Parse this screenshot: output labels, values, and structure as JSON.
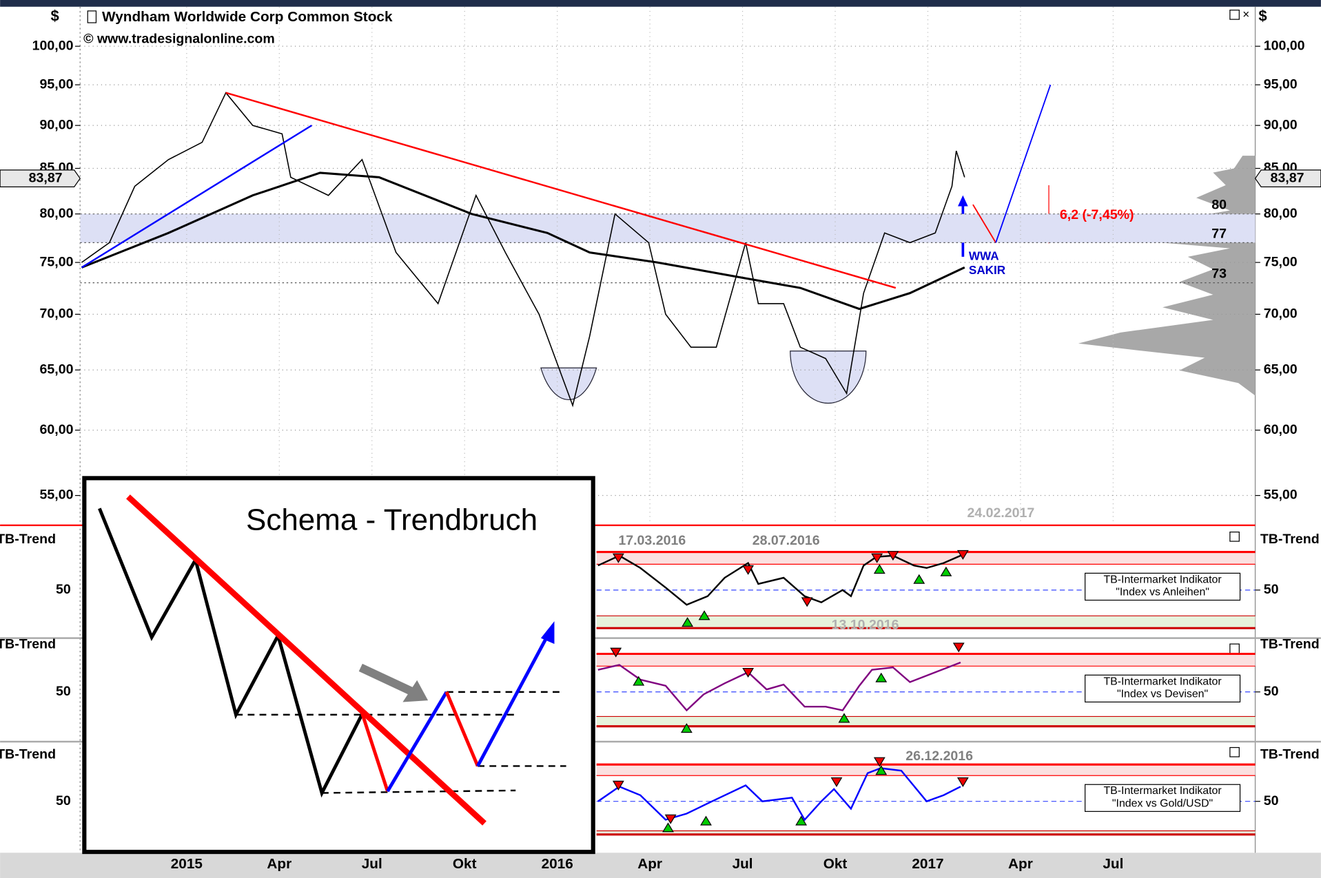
{
  "chart_data": [
    {
      "type": "line",
      "title": "Wyndham Worldwide Corp Common  Stock",
      "subtitle": "© www.tradesignalonline.com",
      "currency": "$",
      "log": true,
      "ylim": [
        53.1,
        105.4
      ],
      "yticks": [
        {
          "value": 55,
          "label": "55,00"
        },
        {
          "value": 60,
          "label": "60,00"
        },
        {
          "value": 65,
          "label": "65,00"
        },
        {
          "value": 70,
          "label": "70,00"
        },
        {
          "value": 75,
          "label": "75,00"
        },
        {
          "value": 80,
          "label": "80,00"
        },
        {
          "value": 85,
          "label": "85,00"
        },
        {
          "value": 90,
          "label": "90,00"
        },
        {
          "value": 95,
          "label": "95,00"
        },
        {
          "value": 100,
          "label": "100,00"
        }
      ],
      "xlim": [
        -3.45,
        34.6
      ],
      "xticks": [
        {
          "value": 0,
          "label": "2015"
        },
        {
          "value": 3,
          "label": "Apr"
        },
        {
          "value": 6,
          "label": "Jul"
        },
        {
          "value": 9,
          "label": "Okt"
        },
        {
          "value": 12,
          "label": "2016"
        },
        {
          "value": 15,
          "label": "Apr"
        },
        {
          "value": 18,
          "label": "Jul"
        },
        {
          "value": 21,
          "label": "Okt"
        },
        {
          "value": 24,
          "label": "2017"
        },
        {
          "value": 27,
          "label": "Apr"
        },
        {
          "value": 30,
          "label": "Jul"
        }
      ],
      "last_price": {
        "value": 83.87,
        "label": "83,87"
      },
      "levels": [
        80,
        77,
        73
      ],
      "series": [
        {
          "color": "#000000",
          "x": [
            -3.4,
            -2.5,
            -1.68,
            -0.59,
            0.5,
            1.27,
            2.14,
            3.09,
            3.37,
            4.59,
            5.68,
            6.78,
            8.14,
            9.37,
            10.32,
            11.41,
            12.5,
            13.05,
            13.87,
            14.96,
            15.51,
            16.33,
            17.15,
            18.1,
            18.51,
            19.33,
            19.87,
            20.69,
            21.37,
            21.92,
            22.6,
            23.42,
            24.24,
            24.78,
            24.92,
            25.19
          ],
          "values": [
            75,
            77,
            83,
            86,
            88,
            94,
            90,
            89,
            84,
            82,
            86,
            76,
            71,
            82,
            76,
            70,
            62,
            68,
            80,
            77,
            70,
            67,
            67,
            77,
            71,
            71,
            67,
            66,
            63,
            72,
            78,
            77,
            78,
            83,
            87,
            84
          ]
        },
        {
          "color": "#000000",
          "x": [
            -3.4,
            -0.59,
            2.14,
            4.32,
            6.23,
            9.23,
            11.68,
            13.05,
            15.24,
            17.97,
            19.87,
            21.78,
            23.42,
            25.19
          ],
          "values": [
            74.5,
            78,
            82,
            84.5,
            84,
            80,
            78,
            76,
            75,
            73.5,
            72.5,
            70.5,
            72,
            74.5
          ]
        },
        {
          "color": "#ff0000",
          "x": [
            1.27,
            22.96
          ],
          "values": [
            94,
            72.5
          ]
        },
        {
          "color": "#0000ff",
          "x": [
            -3.4,
            4.05
          ],
          "values": [
            74.5,
            90
          ]
        },
        {
          "color": "#ff0000",
          "x": [
            25.46,
            26.2
          ],
          "values": [
            81,
            77
          ]
        },
        {
          "color": "#0000ff",
          "x": [
            26.2,
            27.97
          ],
          "values": [
            77,
            95
          ]
        }
      ],
      "annotations": [
        {
          "text": "6,2 (-7,45%)"
        },
        {
          "text": "WWA"
        },
        {
          "text": "SAKIR"
        },
        {
          "text": "24.02.2017"
        }
      ]
    },
    {
      "type": "line",
      "label": "TB-Trend",
      "ylim": [
        15,
        100
      ],
      "yticks": [
        50
      ],
      "upper_band": [
        71,
        81
      ],
      "lower_band": [
        19,
        29
      ],
      "indicator": "TB-Intermarket Indikator",
      "comparison": "\"Index vs Anleihen\"",
      "series": [
        {
          "color": "#000000",
          "x": [
            13.32,
            14.01,
            14.69,
            15.51,
            16.19,
            16.87,
            17.42,
            18.18,
            18.51,
            19.33,
            20.01,
            20.55,
            21.24,
            21.51,
            21.92,
            22.33,
            22.87,
            23.55,
            23.96,
            24.51,
            25.06
          ],
          "values": [
            70,
            78,
            68,
            52,
            38,
            45,
            60,
            72,
            55,
            60,
            45,
            40,
            50,
            45,
            70,
            77,
            78,
            70,
            68,
            72,
            78
          ]
        }
      ],
      "annotations": [
        {
          "text": "17.03.2016"
        },
        {
          "text": "28.07.2016"
        },
        {
          "text": "13.10.2016"
        }
      ]
    },
    {
      "type": "line",
      "label": "TB-Trend",
      "ylim": [
        15,
        100
      ],
      "yticks": [
        50
      ],
      "upper_band": [
        71,
        81
      ],
      "lower_band": [
        22,
        30
      ],
      "indicator": "TB-Intermarket Indikator",
      "comparison": "\"Index vs Devisen\"",
      "series": [
        {
          "color": "#800080",
          "x": [
            13.32,
            14.01,
            14.69,
            15.51,
            16.19,
            16.74,
            17.42,
            18.18,
            18.78,
            19.33,
            20.01,
            20.69,
            21.24,
            21.78,
            22.19,
            22.87,
            23.42,
            24.24,
            25.06
          ],
          "values": [
            68,
            72,
            60,
            55,
            35,
            48,
            57,
            66,
            52,
            56,
            38,
            38,
            35,
            55,
            68,
            70,
            58,
            66,
            74
          ]
        }
      ],
      "annotations": []
    },
    {
      "type": "line",
      "label": "TB-Trend",
      "ylim": [
        15,
        100
      ],
      "yticks": [
        50
      ],
      "upper_band": [
        71,
        80
      ],
      "lower_band": [
        23,
        26
      ],
      "indicator": "TB-Intermarket Indikator",
      "comparison": "\"Index vs Gold/USD\"",
      "series": [
        {
          "color": "#0000ff",
          "x": [
            13.32,
            14.01,
            14.69,
            15.51,
            16.19,
            17.01,
            18.1,
            18.64,
            19.6,
            20.01,
            20.55,
            20.96,
            21.51,
            22.05,
            22.47,
            23.14,
            23.96,
            24.51,
            25.06
          ],
          "values": [
            50,
            62,
            55,
            35,
            40,
            50,
            63,
            50,
            53,
            35,
            50,
            60,
            44,
            73,
            77,
            75,
            50,
            55,
            62
          ]
        }
      ],
      "annotations": [
        {
          "text": "26.12.2016"
        }
      ]
    }
  ],
  "inset": {
    "title": "Schema - Trendbruch"
  }
}
